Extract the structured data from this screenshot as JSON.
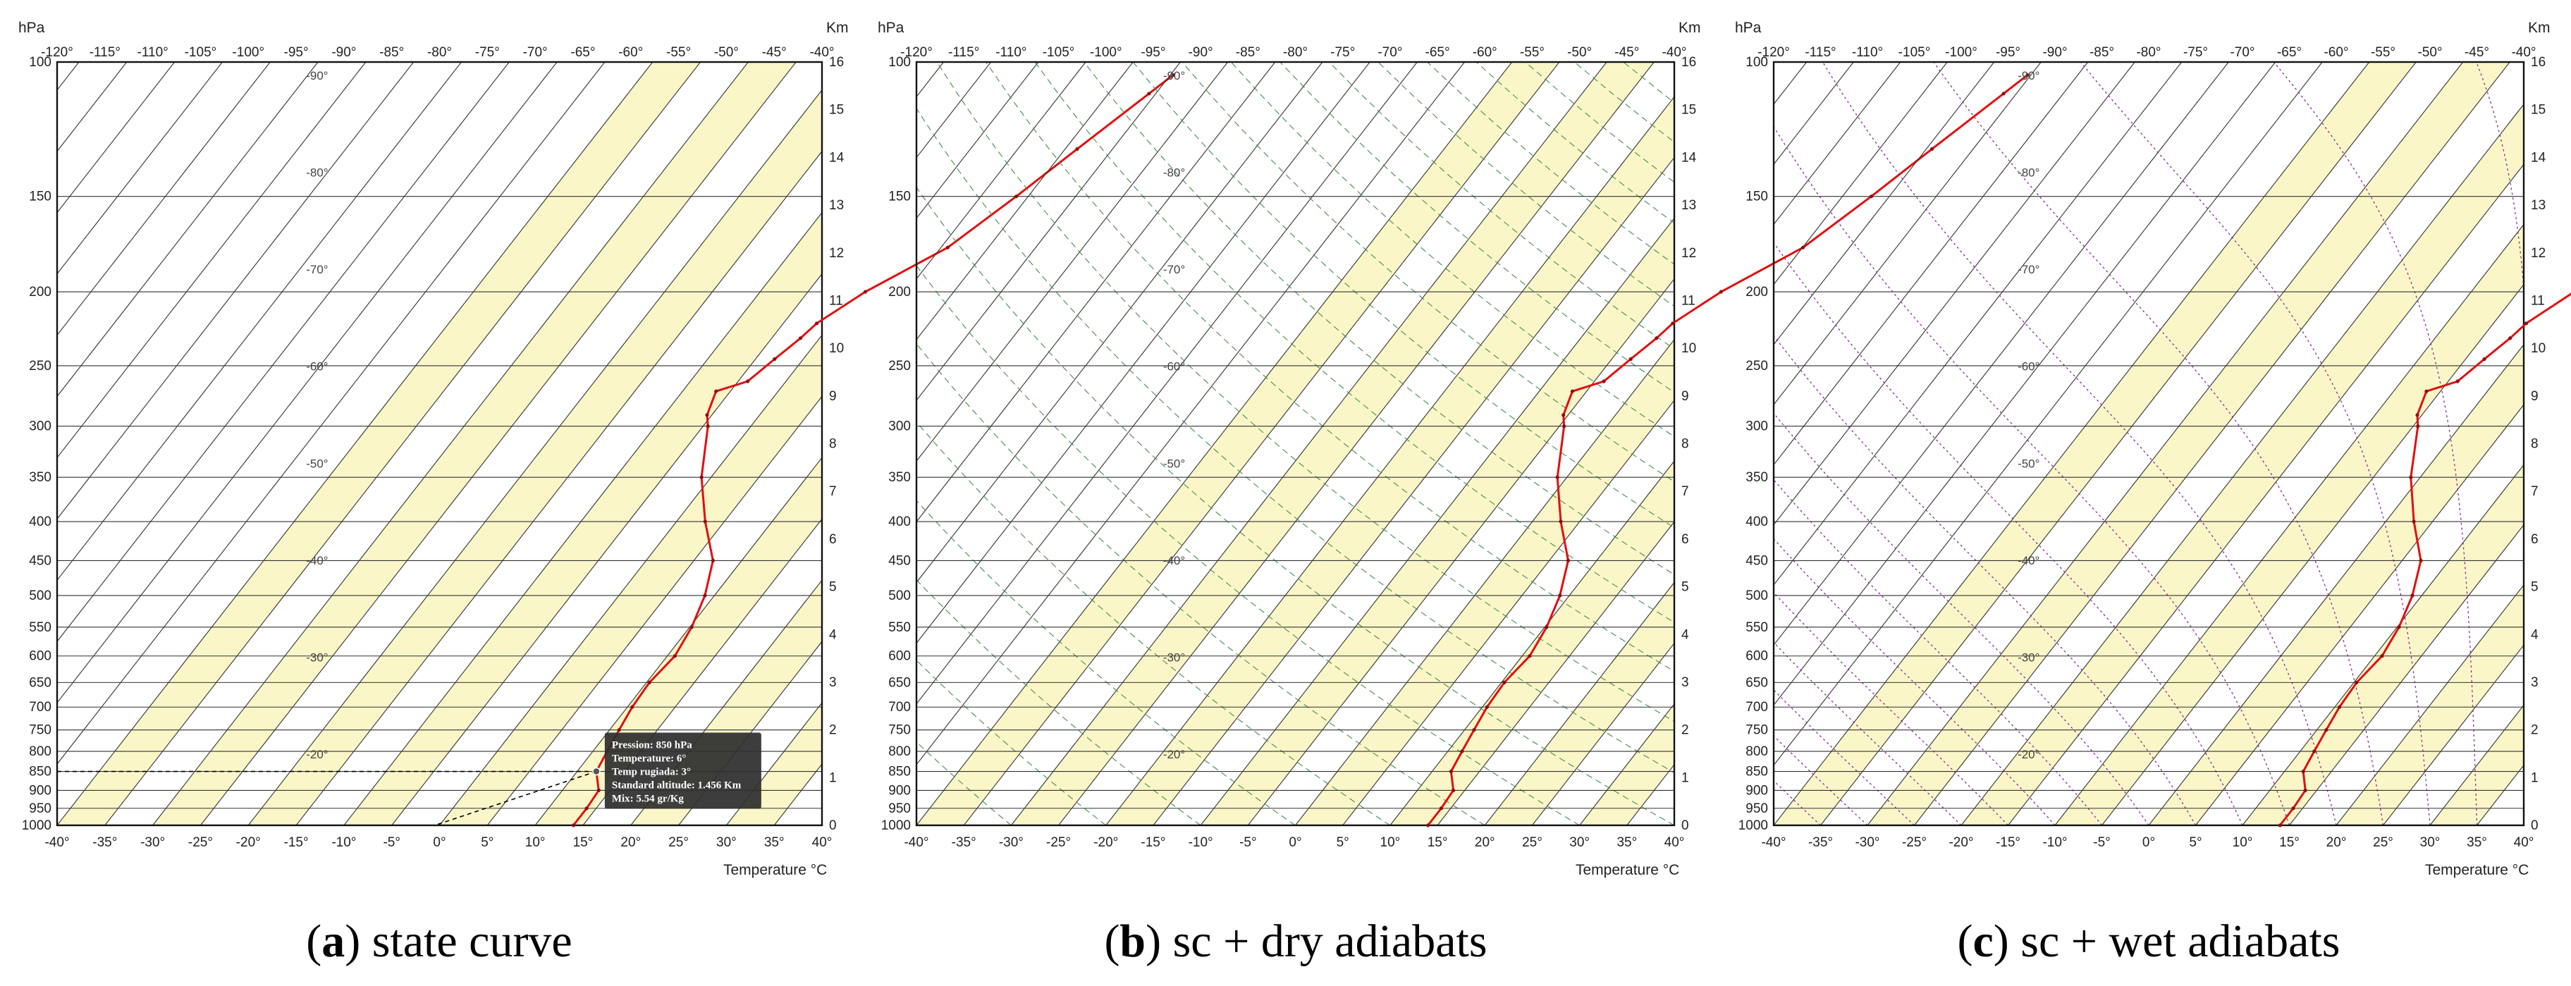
{
  "chart_data": [
    {
      "type": "line",
      "caption_letter": "a",
      "caption_text": " state curve",
      "ylabel": "hPa",
      "right_label": "Km",
      "xlabel": "Temperature °C",
      "overlay": "none",
      "x_bottom_ticks": [
        "-40°",
        "-35°",
        "-30°",
        "-25°",
        "-20°",
        "-15°",
        "-10°",
        "-5°",
        "0°",
        "5°",
        "10°",
        "15°",
        "20°",
        "25°",
        "30°",
        "35°",
        "40°"
      ],
      "x_top_ticks": [
        "-120°",
        "-115°",
        "-110°",
        "-105°",
        "-100°",
        "-95°",
        "-90°",
        "-85°",
        "-80°",
        "-75°",
        "-70°",
        "-65°",
        "-60°",
        "-55°",
        "-50°",
        "-45°",
        "-40°"
      ],
      "pressure_ticks": [
        100,
        150,
        200,
        250,
        300,
        350,
        400,
        450,
        500,
        550,
        600,
        650,
        700,
        750,
        800,
        850,
        900,
        950,
        1000
      ],
      "pressure_labels": [
        "100",
        "150",
        "200",
        "250",
        "300",
        "350",
        "400",
        "450",
        "500",
        "550",
        "600",
        "650",
        "700",
        "750",
        "800",
        "850",
        "900",
        "950",
        "1000"
      ],
      "km_ticks": [
        "16",
        "15",
        "14",
        "13",
        "12",
        "11",
        "10",
        "9",
        "8",
        "7",
        "6",
        "5",
        "4",
        "3",
        "2",
        "1",
        "0"
      ],
      "isotherm_labels": [
        "-90°",
        "-80°",
        "-70°",
        "-60°",
        "-50°",
        "-40°",
        "-30°",
        "-20°"
      ],
      "series": [
        {
          "points": [
            [
              1000,
              14
            ],
            [
              950,
              14
            ],
            [
              900,
              13.8
            ],
            [
              850,
              12
            ],
            [
              800,
              11.5
            ],
            [
              750,
              11
            ],
            [
              700,
              10.5
            ],
            [
              650,
              10.3
            ],
            [
              600,
              10.8
            ],
            [
              550,
              10.2
            ],
            [
              500,
              9
            ],
            [
              450,
              7
            ],
            [
              400,
              3
            ],
            [
              350,
              -1
            ],
            [
              300,
              -4.5
            ],
            [
              290,
              -5.5
            ],
            [
              270,
              -6.5
            ],
            [
              262,
              -4
            ],
            [
              245,
              -3
            ],
            [
              230,
              -2
            ],
            [
              220,
              -1.5
            ],
            [
              200,
              1
            ],
            [
              175,
              6
            ],
            [
              150,
              9
            ],
            [
              130,
              11.5
            ],
            [
              110,
              14.5
            ],
            [
              104,
              15.5
            ]
          ]
        }
      ],
      "tooltip": [
        "Pression: 850 hPa",
        "Temperature: 6°",
        "Temp rugiada: 3°",
        "Standard altitude: 1.456 Km",
        "Mix: 5.54 gr/Kg"
      ],
      "colors": {
        "band": "#fbf6c8",
        "curve": "#e01010",
        "grid": "#333333"
      }
    },
    {
      "type": "line",
      "caption_letter": "b",
      "caption_text": " sc + dry adiabats",
      "ylabel": "hPa",
      "right_label": "Km",
      "xlabel": "Temperature °C",
      "overlay": "dry",
      "x_bottom_ticks": [
        "-40°",
        "-35°",
        "-30°",
        "-25°",
        "-20°",
        "-15°",
        "-10°",
        "-5°",
        "0°",
        "5°",
        "10°",
        "15°",
        "20°",
        "25°",
        "30°",
        "35°",
        "40°"
      ],
      "x_top_ticks": [
        "-120°",
        "-115°",
        "-110°",
        "-105°",
        "-100°",
        "-95°",
        "-90°",
        "-85°",
        "-80°",
        "-75°",
        "-70°",
        "-65°",
        "-60°",
        "-55°",
        "-50°",
        "-45°",
        "-40°"
      ],
      "pressure_ticks": [
        100,
        150,
        200,
        250,
        300,
        350,
        400,
        450,
        500,
        550,
        600,
        650,
        700,
        750,
        800,
        850,
        900,
        950,
        1000
      ],
      "pressure_labels": [
        "100",
        "150",
        "200",
        "250",
        "300",
        "350",
        "400",
        "450",
        "500",
        "550",
        "600",
        "650",
        "700",
        "750",
        "800",
        "850",
        "900",
        "950",
        "1000"
      ],
      "km_ticks": [
        "16",
        "15",
        "14",
        "13",
        "12",
        "11",
        "10",
        "9",
        "8",
        "7",
        "6",
        "5",
        "4",
        "3",
        "2",
        "1",
        "0"
      ],
      "isotherm_labels": [
        "-90°",
        "-80°",
        "-70°",
        "-60°",
        "-50°",
        "-40°",
        "-30°",
        "-20°"
      ],
      "series": [
        {
          "points": [
            [
              1000,
              14
            ],
            [
              950,
              14
            ],
            [
              900,
              13.8
            ],
            [
              850,
              12
            ],
            [
              800,
              11.5
            ],
            [
              750,
              11
            ],
            [
              700,
              10.5
            ],
            [
              650,
              10.3
            ],
            [
              600,
              10.8
            ],
            [
              550,
              10.2
            ],
            [
              500,
              9
            ],
            [
              450,
              7
            ],
            [
              400,
              3
            ],
            [
              350,
              -1
            ],
            [
              300,
              -4.5
            ],
            [
              290,
              -5.5
            ],
            [
              270,
              -6.5
            ],
            [
              262,
              -4
            ],
            [
              245,
              -3
            ],
            [
              230,
              -2
            ],
            [
              220,
              -1.5
            ],
            [
              200,
              1
            ],
            [
              175,
              6
            ],
            [
              150,
              9
            ],
            [
              130,
              11.5
            ],
            [
              110,
              14.5
            ],
            [
              104,
              15.5
            ]
          ]
        }
      ],
      "colors": {
        "band": "#fbf6c8",
        "curve": "#e01010",
        "grid": "#333333",
        "adiabat": "#3f8f4f"
      }
    },
    {
      "type": "line",
      "caption_letter": "c",
      "caption_text": " sc + wet adiabats",
      "ylabel": "hPa",
      "right_label": "Km",
      "xlabel": "Temperature °C",
      "overlay": "wet",
      "x_bottom_ticks": [
        "-40°",
        "-35°",
        "-30°",
        "-25°",
        "-20°",
        "-15°",
        "-10°",
        "-5°",
        "0°",
        "5°",
        "10°",
        "15°",
        "20°",
        "25°",
        "30°",
        "35°",
        "40°"
      ],
      "x_top_ticks": [
        "-120°",
        "-115°",
        "-110°",
        "-105°",
        "-100°",
        "-95°",
        "-90°",
        "-85°",
        "-80°",
        "-75°",
        "-70°",
        "-65°",
        "-60°",
        "-55°",
        "-50°",
        "-45°",
        "-40°"
      ],
      "pressure_ticks": [
        100,
        150,
        200,
        250,
        300,
        350,
        400,
        450,
        500,
        550,
        600,
        650,
        700,
        750,
        800,
        850,
        900,
        950,
        1000
      ],
      "pressure_labels": [
        "100",
        "150",
        "200",
        "250",
        "300",
        "350",
        "400",
        "450",
        "500",
        "550",
        "600",
        "650",
        "700",
        "750",
        "800",
        "850",
        "900",
        "950",
        "1000"
      ],
      "km_ticks": [
        "16",
        "15",
        "14",
        "13",
        "12",
        "11",
        "10",
        "9",
        "8",
        "7",
        "6",
        "5",
        "4",
        "3",
        "2",
        "1",
        "0"
      ],
      "isotherm_labels": [
        "-90°",
        "-80°",
        "-70°",
        "-60°",
        "-50°",
        "-40°",
        "-30°",
        "-20°"
      ],
      "series": [
        {
          "points": [
            [
              1000,
              14
            ],
            [
              950,
              14
            ],
            [
              900,
              13.8
            ],
            [
              850,
              12
            ],
            [
              800,
              11.5
            ],
            [
              750,
              11
            ],
            [
              700,
              10.5
            ],
            [
              650,
              10.3
            ],
            [
              600,
              10.8
            ],
            [
              550,
              10.2
            ],
            [
              500,
              9
            ],
            [
              450,
              7
            ],
            [
              400,
              3
            ],
            [
              350,
              -1
            ],
            [
              300,
              -4.5
            ],
            [
              290,
              -5.5
            ],
            [
              270,
              -6.5
            ],
            [
              262,
              -4
            ],
            [
              245,
              -3
            ],
            [
              230,
              -2
            ],
            [
              220,
              -1.5
            ],
            [
              200,
              1
            ],
            [
              175,
              6
            ],
            [
              150,
              9
            ],
            [
              130,
              11.5
            ],
            [
              110,
              14.5
            ],
            [
              104,
              15.5
            ]
          ]
        }
      ],
      "colors": {
        "band": "#fbf6c8",
        "curve": "#e01010",
        "grid": "#333333",
        "adiabat": "#8a2a9a"
      }
    }
  ]
}
